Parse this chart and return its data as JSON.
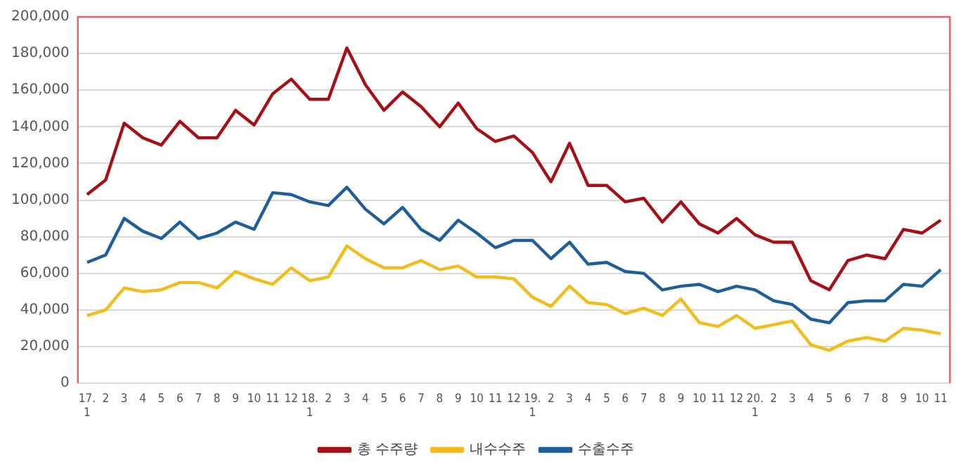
{
  "chart_data": {
    "type": "line",
    "categories": [
      "17.\n1",
      "2",
      "3",
      "4",
      "5",
      "6",
      "7",
      "8",
      "9",
      "10",
      "11",
      "12",
      "18.\n1",
      "2",
      "3",
      "4",
      "5",
      "6",
      "7",
      "8",
      "9",
      "10",
      "11",
      "12",
      "19.\n1",
      "2",
      "3",
      "4",
      "5",
      "6",
      "7",
      "8",
      "9",
      "10",
      "11",
      "12",
      "20.\n1",
      "2",
      "3",
      "4",
      "5",
      "6",
      "7",
      "8",
      "9",
      "10",
      "11"
    ],
    "series": [
      {
        "name": "총 수주량",
        "color": "#a50f15",
        "values": [
          103000,
          111000,
          142000,
          134000,
          130000,
          143000,
          134000,
          134000,
          149000,
          141000,
          158000,
          166000,
          155000,
          155000,
          183000,
          163000,
          149000,
          159000,
          151000,
          140000,
          153000,
          139000,
          132000,
          135000,
          126000,
          110000,
          131000,
          108000,
          108000,
          99000,
          101000,
          88000,
          99000,
          87000,
          82000,
          90000,
          81000,
          77000,
          77000,
          56000,
          51000,
          67000,
          70000,
          68000,
          84000,
          82000,
          89000
        ]
      },
      {
        "name": "내수수주",
        "color": "#f2bc1a",
        "values": [
          37000,
          40000,
          52000,
          50000,
          51000,
          55000,
          55000,
          52000,
          61000,
          57000,
          54000,
          63000,
          56000,
          58000,
          75000,
          68000,
          63000,
          63000,
          67000,
          62000,
          64000,
          58000,
          58000,
          57000,
          47000,
          42000,
          53000,
          44000,
          43000,
          38000,
          41000,
          37000,
          46000,
          33000,
          31000,
          37000,
          30000,
          32000,
          34000,
          21000,
          18000,
          23000,
          25000,
          23000,
          30000,
          29000,
          27000
        ]
      },
      {
        "name": "수출수주",
        "color": "#1f5f99",
        "values": [
          66000,
          70000,
          90000,
          83000,
          79000,
          88000,
          79000,
          82000,
          88000,
          84000,
          104000,
          103000,
          99000,
          97000,
          107000,
          95000,
          87000,
          96000,
          84000,
          78000,
          89000,
          82000,
          74000,
          78000,
          78000,
          68000,
          77000,
          65000,
          66000,
          61000,
          60000,
          51000,
          53000,
          54000,
          50000,
          53000,
          51000,
          45000,
          43000,
          35000,
          33000,
          44000,
          45000,
          45000,
          54000,
          53000,
          62000
        ]
      }
    ],
    "ylim": [
      0,
      200000
    ],
    "yticks": [
      {
        "value": 0,
        "label": "0"
      },
      {
        "value": 20000,
        "label": "20,000"
      },
      {
        "value": 40000,
        "label": "40,000"
      },
      {
        "value": 60000,
        "label": "60,000"
      },
      {
        "value": 80000,
        "label": "80,000"
      },
      {
        "value": 100000,
        "label": "100,000"
      },
      {
        "value": 120000,
        "label": "120,000"
      },
      {
        "value": 140000,
        "label": "140,000"
      },
      {
        "value": 160000,
        "label": "160,000"
      },
      {
        "value": 180000,
        "label": "180,000"
      },
      {
        "value": 200000,
        "label": "200,000"
      }
    ],
    "grid": "y",
    "legend": "bottom",
    "marker": "none",
    "line_style": "solid"
  }
}
